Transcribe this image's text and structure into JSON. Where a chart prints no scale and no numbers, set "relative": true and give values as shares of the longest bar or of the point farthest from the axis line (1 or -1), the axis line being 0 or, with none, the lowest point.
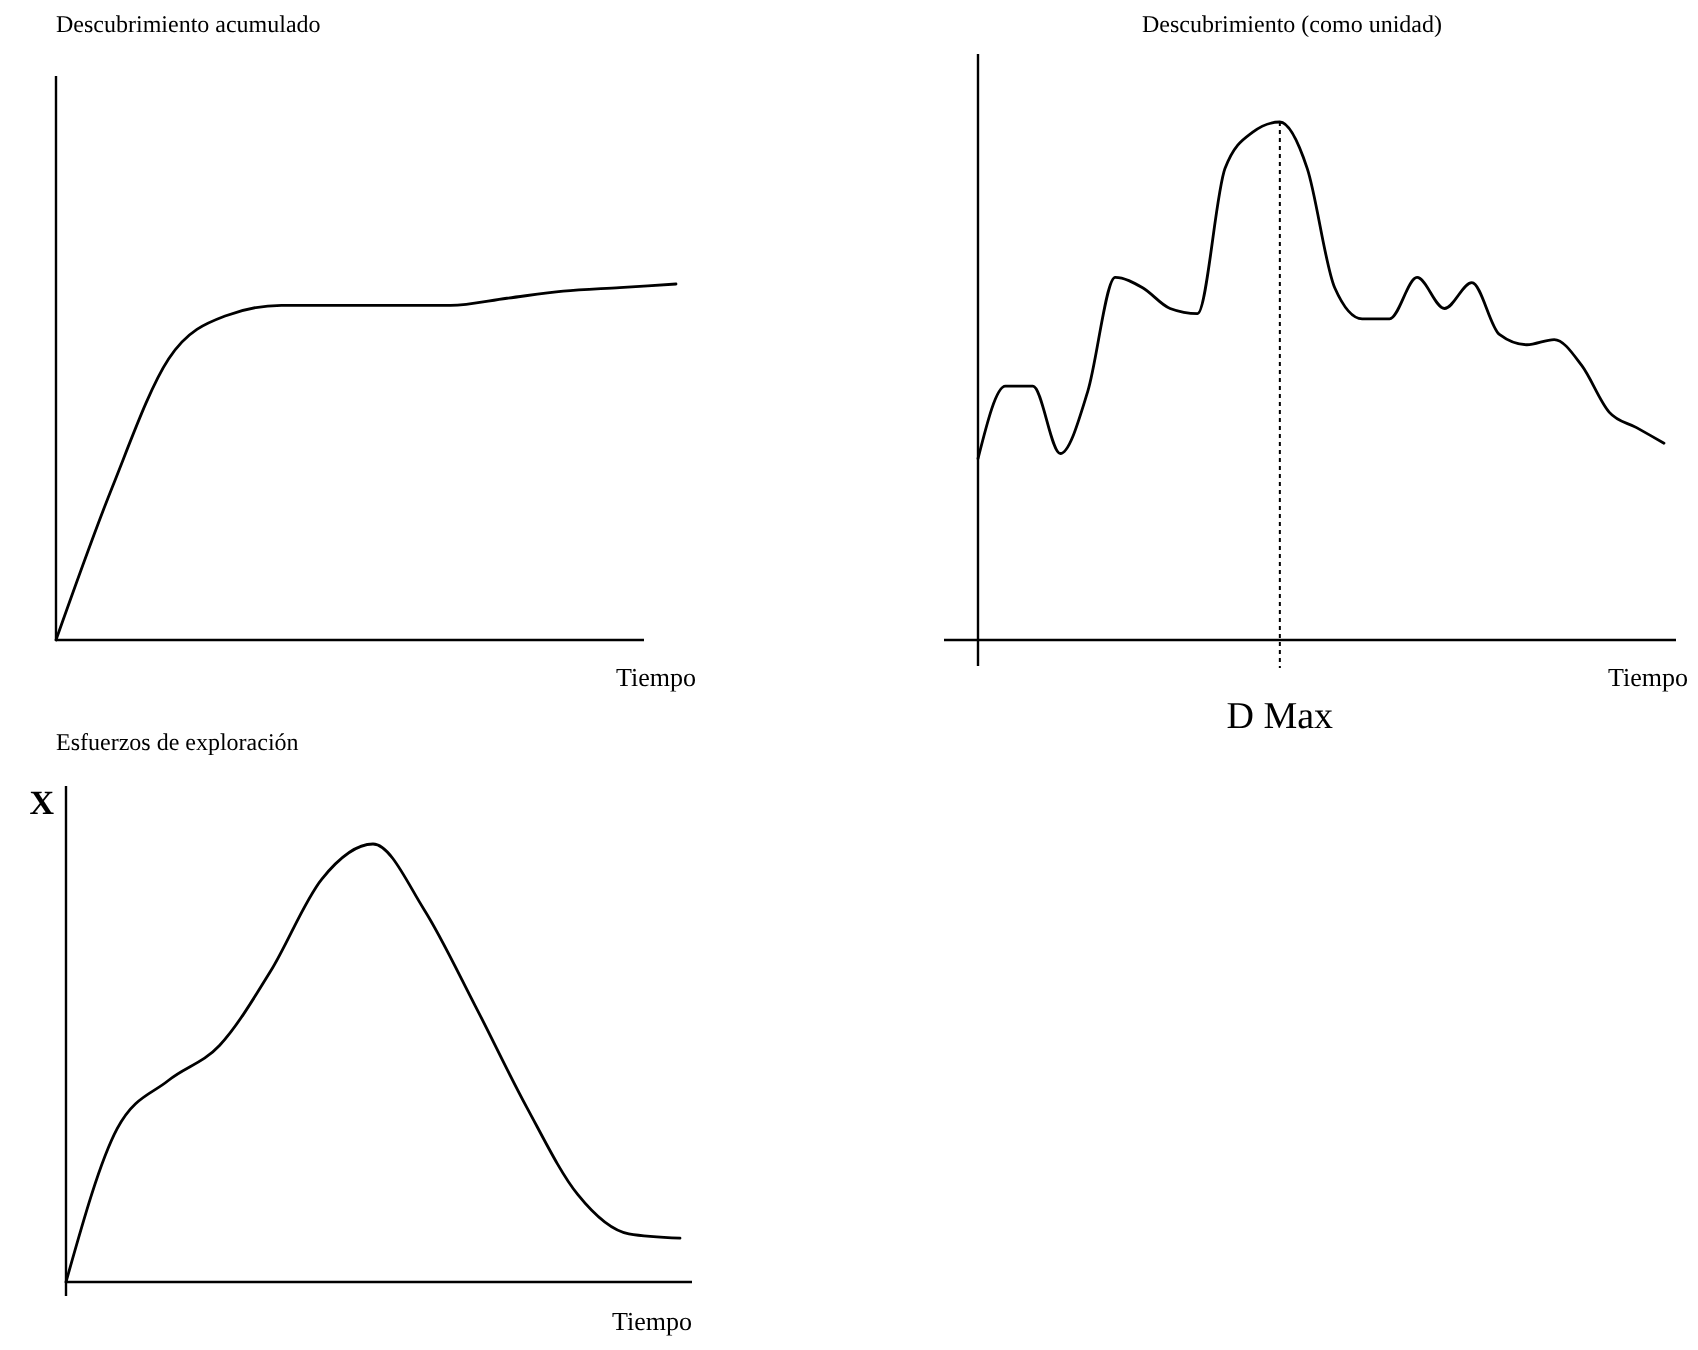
{
  "chart_data": [
    {
      "type": "line",
      "title": "Descubrimiento acumulado",
      "xlabel": "Tiempo",
      "relative": true,
      "categories": [
        null,
        null,
        null,
        null,
        null,
        null,
        null,
        null,
        null,
        null,
        null,
        null
      ],
      "series": [
        {
          "color": "#000000",
          "values": [
            0,
            0.43,
            0.79,
            0.91,
            0.94,
            0.94,
            0.94,
            0.94,
            0.96,
            0.98,
            0.99,
            1
          ]
        }
      ]
    },
    {
      "type": "line",
      "title": "Descubrimiento (como unidad)",
      "xlabel": "Tiempo",
      "relative": true,
      "categories": [
        null,
        null,
        null,
        null,
        null,
        null,
        null,
        null,
        null,
        null,
        null,
        null,
        null,
        null,
        null,
        null,
        null,
        null,
        null,
        null,
        null,
        null,
        null,
        null,
        null,
        null
      ],
      "series": [
        {
          "color": "#000000",
          "values": [
            0.35,
            0.49,
            0.49,
            0.36,
            0.48,
            0.7,
            0.68,
            0.64,
            0.63,
            0.91,
            0.98,
            1,
            0.91,
            0.68,
            0.62,
            0.62,
            0.7,
            0.64,
            0.69,
            0.59,
            0.57,
            0.58,
            0.53,
            0.44,
            0.41,
            0.38
          ]
        }
      ],
      "annotations": [
        "D Max"
      ]
    },
    {
      "type": "line",
      "title": "Esfuerzos de exploración",
      "xlabel": "Tiempo",
      "ylabel": "X",
      "relative": true,
      "categories": [
        null,
        null,
        null,
        null,
        null,
        null,
        null,
        null,
        null,
        null,
        null,
        null,
        null
      ],
      "series": [
        {
          "color": "#000000",
          "values": [
            0,
            0.35,
            0.46,
            0.54,
            0.71,
            0.92,
            1,
            0.85,
            0.63,
            0.4,
            0.2,
            0.11,
            0.1
          ]
        }
      ]
    }
  ]
}
